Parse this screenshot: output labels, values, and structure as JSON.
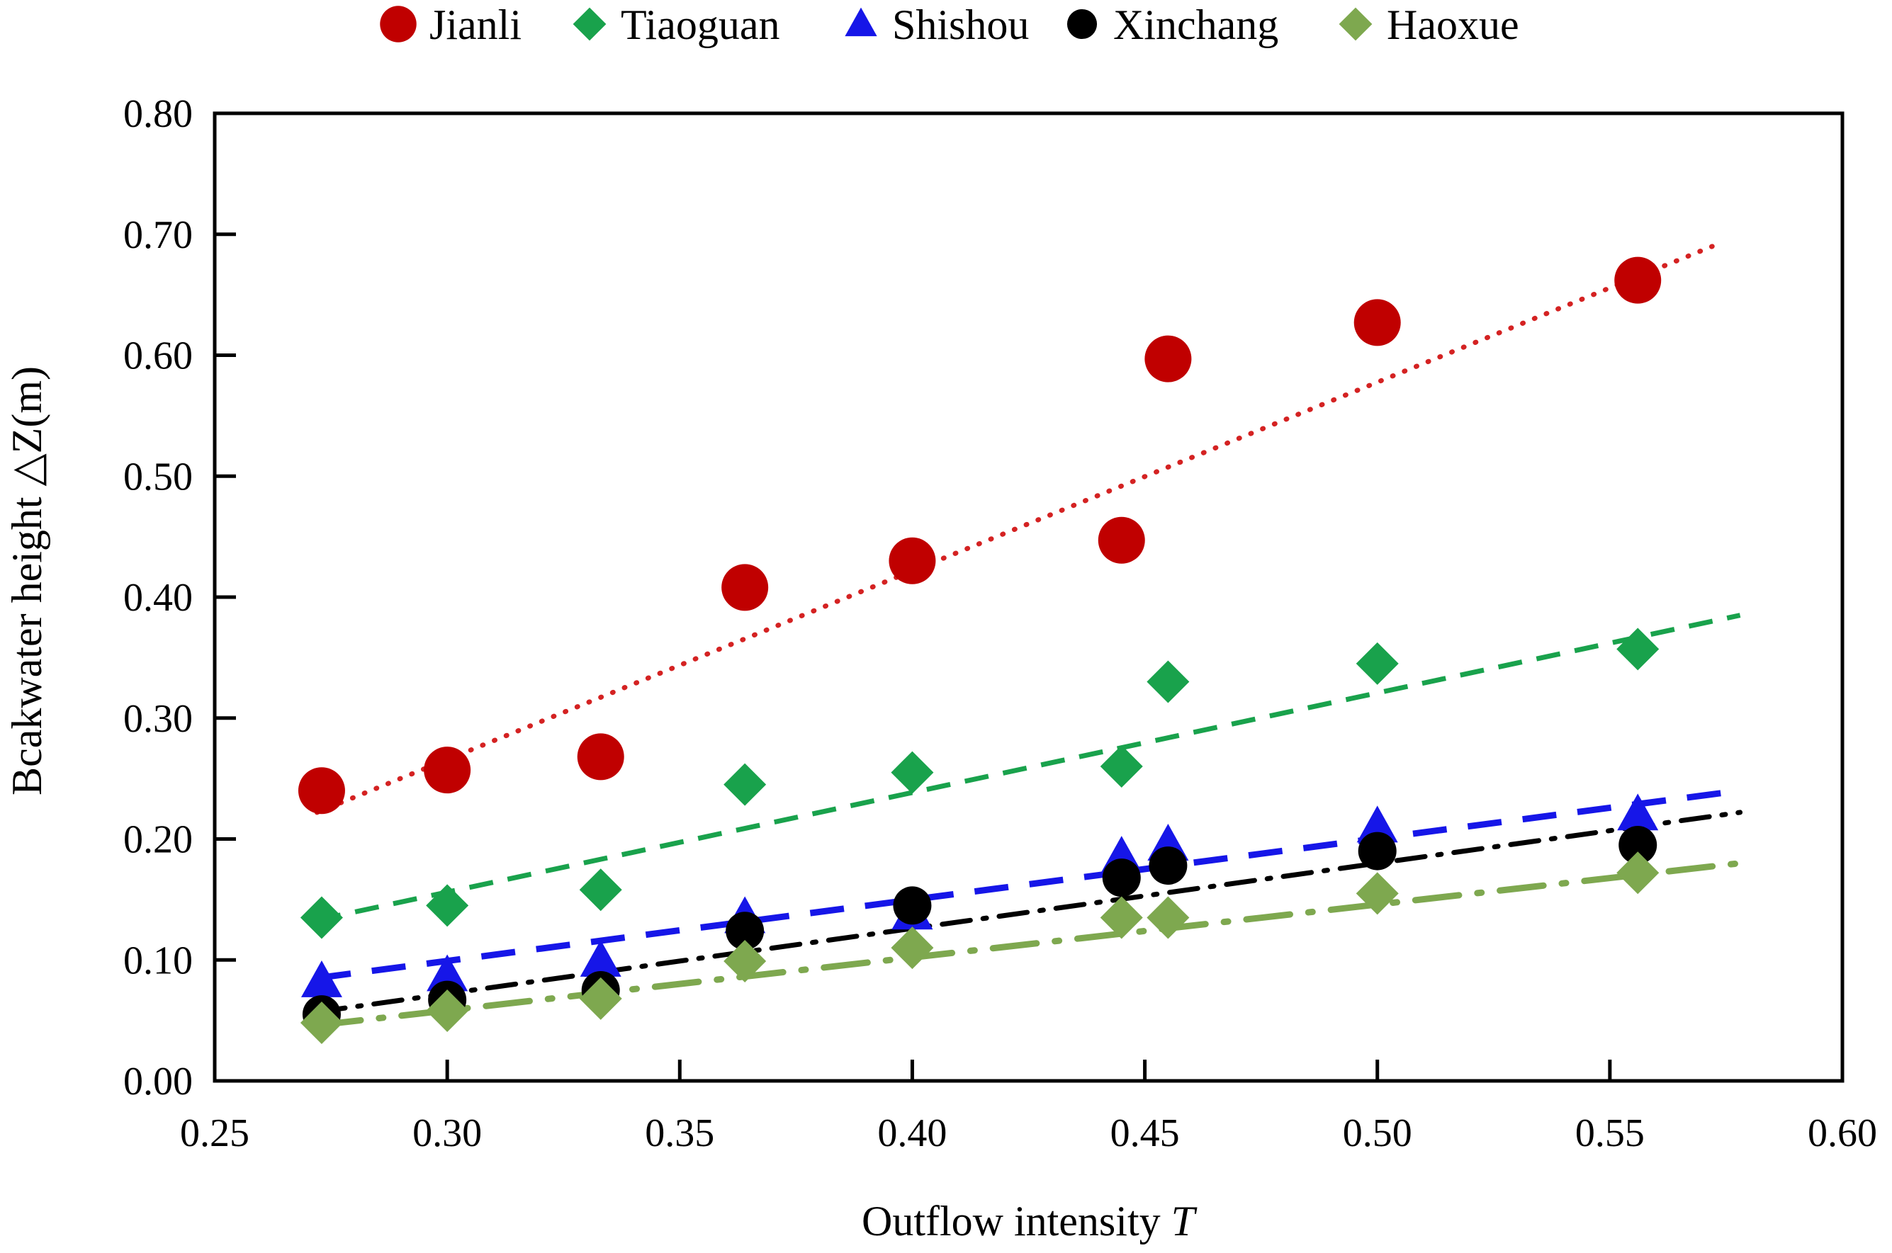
{
  "figure": {
    "background": "#ffffff",
    "frame_color": "#000000"
  },
  "chart_data": {
    "type": "scatter",
    "title": "",
    "xlabel_regular": "Outflow intensity ",
    "xlabel_italic": "T",
    "ylabel": "Bcakwater height △Z(m)",
    "xlim": [
      0.25,
      0.6
    ],
    "ylim": [
      0.0,
      0.8
    ],
    "x_ticks": [
      "0.25",
      "0.30",
      "0.35",
      "0.40",
      "0.45",
      "0.50",
      "0.55",
      "0.60"
    ],
    "y_ticks": [
      "0.00",
      "0.10",
      "0.20",
      "0.30",
      "0.40",
      "0.50",
      "0.60",
      "0.70",
      "0.80"
    ],
    "grid": false,
    "legend_position": "top-center",
    "series": [
      {
        "name": "Jianli",
        "marker": "circle",
        "marker_color": "#c00000",
        "line_color": "#d42222",
        "line_style": "dotted",
        "points": [
          [
            0.273,
            0.24
          ],
          [
            0.3,
            0.257
          ],
          [
            0.333,
            0.268
          ],
          [
            0.364,
            0.408
          ],
          [
            0.4,
            0.43
          ],
          [
            0.445,
            0.447
          ],
          [
            0.455,
            0.597
          ],
          [
            0.5,
            0.627
          ],
          [
            0.556,
            0.662
          ]
        ],
        "trendline": [
          [
            0.272,
            0.222
          ],
          [
            0.572,
            0.69
          ]
        ]
      },
      {
        "name": "Tiaoguan",
        "marker": "diamond",
        "marker_color": "#19a24c",
        "line_color": "#19a24c",
        "line_style": "dashed",
        "points": [
          [
            0.273,
            0.135
          ],
          [
            0.3,
            0.145
          ],
          [
            0.333,
            0.158
          ],
          [
            0.364,
            0.245
          ],
          [
            0.4,
            0.255
          ],
          [
            0.445,
            0.26
          ],
          [
            0.455,
            0.33
          ],
          [
            0.5,
            0.345
          ],
          [
            0.556,
            0.357
          ]
        ],
        "trendline": [
          [
            0.272,
            0.133
          ],
          [
            0.578,
            0.385
          ]
        ]
      },
      {
        "name": "Shishou",
        "marker": "triangle",
        "marker_color": "#1616e8",
        "line_color": "#1616e8",
        "line_style": "long-dashed",
        "points": [
          [
            0.273,
            0.082
          ],
          [
            0.3,
            0.087
          ],
          [
            0.333,
            0.099
          ],
          [
            0.364,
            0.135
          ],
          [
            0.4,
            0.138
          ],
          [
            0.445,
            0.185
          ],
          [
            0.455,
            0.195
          ],
          [
            0.5,
            0.21
          ],
          [
            0.556,
            0.22
          ]
        ],
        "trendline": [
          [
            0.272,
            0.085
          ],
          [
            0.578,
            0.24
          ]
        ]
      },
      {
        "name": "Xinchang",
        "marker": "circle-small",
        "marker_color": "#000000",
        "line_color": "#000000",
        "line_style": "dash-dot",
        "points": [
          [
            0.273,
            0.055
          ],
          [
            0.3,
            0.067
          ],
          [
            0.333,
            0.075
          ],
          [
            0.364,
            0.124
          ],
          [
            0.4,
            0.145
          ],
          [
            0.445,
            0.168
          ],
          [
            0.455,
            0.178
          ],
          [
            0.5,
            0.19
          ],
          [
            0.556,
            0.195
          ]
        ],
        "trendline": [
          [
            0.272,
            0.057
          ],
          [
            0.578,
            0.222
          ]
        ]
      },
      {
        "name": "Haoxue",
        "marker": "diamond",
        "marker_color": "#7ea84f",
        "line_color": "#7ea84f",
        "line_style": "long-dash-dot",
        "points": [
          [
            0.273,
            0.048
          ],
          [
            0.3,
            0.058
          ],
          [
            0.333,
            0.068
          ],
          [
            0.364,
            0.099
          ],
          [
            0.4,
            0.11
          ],
          [
            0.445,
            0.135
          ],
          [
            0.455,
            0.135
          ],
          [
            0.5,
            0.155
          ],
          [
            0.556,
            0.172
          ]
        ],
        "trendline": [
          [
            0.272,
            0.046
          ],
          [
            0.578,
            0.18
          ]
        ]
      }
    ]
  },
  "layout_hints": {
    "legend_marker_x": [
      562,
      832,
      1215,
      1527,
      1913
    ]
  }
}
